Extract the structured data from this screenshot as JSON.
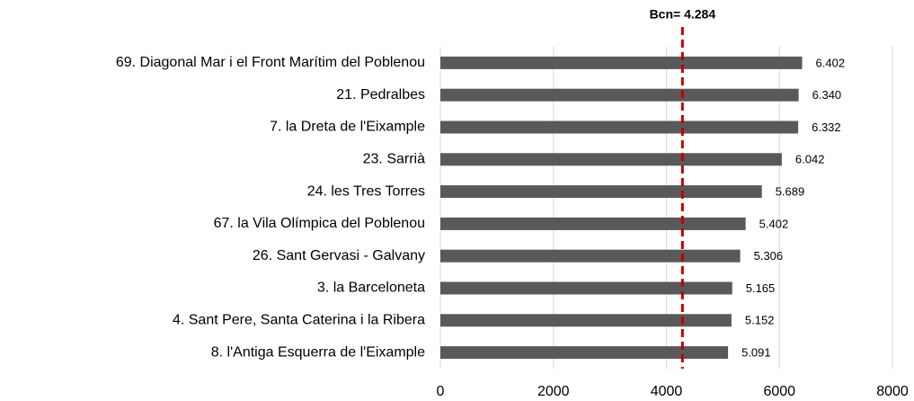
{
  "chart_data": {
    "type": "bar",
    "orientation": "horizontal",
    "categories": [
      "69. Diagonal Mar i el Front Marítim del Poblenou",
      "21. Pedralbes",
      "7. la Dreta de l'Eixample",
      "23. Sarrià",
      "24. les Tres Torres",
      "67. la Vila Olímpica del Poblenou",
      "26. Sant Gervasi - Galvany",
      "3. la Barceloneta",
      "4. Sant Pere, Santa Caterina i la Ribera",
      "8. l'Antiga Esquerra de l'Eixample"
    ],
    "values": [
      6402,
      6340,
      6332,
      6042,
      5689,
      5402,
      5306,
      5165,
      5152,
      5091
    ],
    "value_labels": [
      "6.402",
      "6.340",
      "6.332",
      "6.042",
      "5.689",
      "5.402",
      "5.306",
      "5.165",
      "5.152",
      "5.091"
    ],
    "color": "#595959",
    "xlim": [
      0,
      8000
    ],
    "xticks": [
      0,
      2000,
      4000,
      6000,
      8000
    ],
    "grid": true,
    "reference_line": {
      "value": 4284,
      "label": "Bcn= 4.284",
      "color": "#c00000"
    }
  }
}
